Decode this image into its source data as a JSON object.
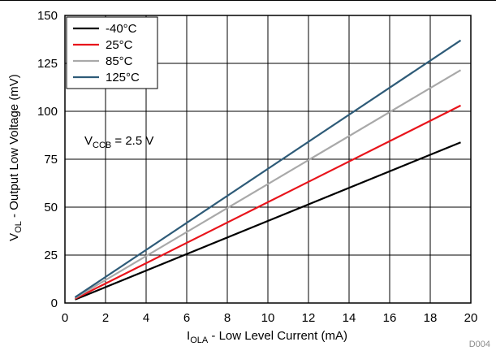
{
  "chart_data": {
    "type": "line",
    "xlabel": {
      "main": "I",
      "sub": "OLA",
      "rest": " - Low Level Current (mA)"
    },
    "ylabel": {
      "main": "V",
      "sub": "OL",
      "rest": " - Output Low Voltage (mV)"
    },
    "xlim": [
      0,
      20
    ],
    "ylim": [
      0,
      150
    ],
    "xticks": [
      "0",
      "2",
      "4",
      "6",
      "8",
      "10",
      "12",
      "14",
      "16",
      "18",
      "20"
    ],
    "yticks": [
      "0",
      "25",
      "50",
      "75",
      "100",
      "125",
      "150"
    ],
    "xtick_values": [
      0,
      2,
      4,
      6,
      8,
      10,
      12,
      14,
      16,
      18,
      20
    ],
    "ytick_values": [
      0,
      25,
      50,
      75,
      100,
      125,
      150
    ],
    "grid": true,
    "legend_position": "top-left",
    "annotation": {
      "main": "V",
      "sub": "CCB",
      "rest": " = 2.5 V"
    },
    "series": [
      {
        "name": "-40°C",
        "color": "#000000",
        "x": [
          0.5,
          19.5
        ],
        "y": [
          1.8,
          83.8
        ]
      },
      {
        "name": "25°C",
        "color": "#e8141b",
        "x": [
          0.5,
          19.5
        ],
        "y": [
          2.2,
          103.0
        ]
      },
      {
        "name": "85°C",
        "color": "#a9a9a9",
        "x": [
          0.5,
          19.5
        ],
        "y": [
          2.6,
          121.5
        ]
      },
      {
        "name": "125°C",
        "color": "#2e5b78",
        "x": [
          0.5,
          19.5
        ],
        "y": [
          3.0,
          137.0
        ]
      }
    ],
    "footer_code": "D004"
  }
}
